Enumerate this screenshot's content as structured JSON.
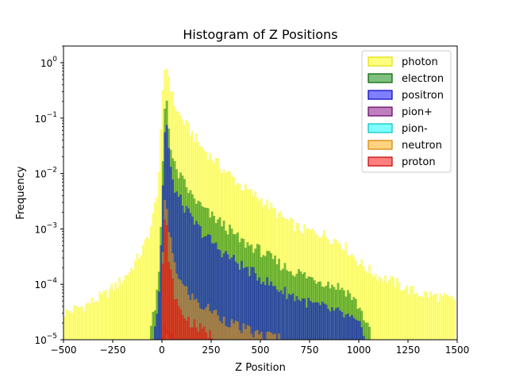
{
  "chart_data": {
    "type": "bar",
    "title": "Histogram of Z Positions",
    "xlabel": "Z Position",
    "ylabel": "Frequency",
    "xlim": [
      -500,
      1500
    ],
    "ylim": [
      1e-05,
      2
    ],
    "yscale": "log",
    "bin_width": 10,
    "grid": false,
    "legend_position": "top-right",
    "xticks": [
      {
        "value": -500,
        "label": "−500"
      },
      {
        "value": -250,
        "label": "−250"
      },
      {
        "value": 0,
        "label": "0"
      },
      {
        "value": 250,
        "label": "250"
      },
      {
        "value": 500,
        "label": "500"
      },
      {
        "value": 750,
        "label": "750"
      },
      {
        "value": 1000,
        "label": "1000"
      },
      {
        "value": 1250,
        "label": "1250"
      },
      {
        "value": 1500,
        "label": "1500"
      }
    ],
    "yticks": [
      {
        "value": 1e-05,
        "base": "10",
        "exp": "−5"
      },
      {
        "value": 0.0001,
        "base": "10",
        "exp": "−4"
      },
      {
        "value": 0.001,
        "base": "10",
        "exp": "−3"
      },
      {
        "value": 0.01,
        "base": "10",
        "exp": "−2"
      },
      {
        "value": 0.1,
        "base": "10",
        "exp": "−1"
      },
      {
        "value": 1,
        "base": "10",
        "exp": "0"
      }
    ],
    "series": [
      {
        "name": "photon",
        "color": "#ffff00",
        "edge": "#e0e000",
        "points": [
          [
            -500,
            3e-05
          ],
          [
            -400,
            4e-05
          ],
          [
            -300,
            6e-05
          ],
          [
            -200,
            0.00012
          ],
          [
            -150,
            0.0002
          ],
          [
            -100,
            0.0004
          ],
          [
            -60,
            0.0009
          ],
          [
            -40,
            0.002
          ],
          [
            -20,
            0.006
          ],
          [
            -10,
            0.02
          ],
          [
            0,
            0.12
          ],
          [
            10,
            0.55
          ],
          [
            20,
            1.0
          ],
          [
            30,
            0.7
          ],
          [
            40,
            0.45
          ],
          [
            50,
            0.3
          ],
          [
            60,
            0.2
          ],
          [
            80,
            0.13
          ],
          [
            100,
            0.1
          ],
          [
            150,
            0.055
          ],
          [
            200,
            0.03
          ],
          [
            250,
            0.02
          ],
          [
            300,
            0.013
          ],
          [
            350,
            0.009
          ],
          [
            400,
            0.006
          ],
          [
            450,
            0.0045
          ],
          [
            500,
            0.0035
          ],
          [
            550,
            0.0025
          ],
          [
            600,
            0.0017
          ],
          [
            650,
            0.0013
          ],
          [
            700,
            0.001
          ],
          [
            750,
            0.0009
          ],
          [
            800,
            0.00085
          ],
          [
            850,
            0.0007
          ],
          [
            900,
            0.0006
          ],
          [
            950,
            0.0004
          ],
          [
            1000,
            0.00025
          ],
          [
            1050,
            0.00018
          ],
          [
            1100,
            0.00014
          ],
          [
            1150,
            0.00012
          ],
          [
            1200,
            0.0001
          ],
          [
            1250,
            8e-05
          ],
          [
            1300,
            7e-05
          ],
          [
            1400,
            6e-05
          ],
          [
            1490,
            5e-05
          ]
        ]
      },
      {
        "name": "electron",
        "color": "#008000",
        "edge": "#006000",
        "points": [
          [
            -60,
            1.5e-05
          ],
          [
            -40,
            3e-05
          ],
          [
            -20,
            8e-05
          ],
          [
            -10,
            0.0003
          ],
          [
            0,
            0.003
          ],
          [
            10,
            0.08
          ],
          [
            20,
            0.3
          ],
          [
            30,
            0.15
          ],
          [
            40,
            0.04
          ],
          [
            50,
            0.02
          ],
          [
            60,
            0.015
          ],
          [
            80,
            0.01
          ],
          [
            100,
            0.008
          ],
          [
            150,
            0.004
          ],
          [
            200,
            0.0025
          ],
          [
            250,
            0.0017
          ],
          [
            300,
            0.0013
          ],
          [
            350,
            0.0009
          ],
          [
            400,
            0.0006
          ],
          [
            450,
            0.0005
          ],
          [
            500,
            0.0004
          ],
          [
            550,
            0.0003
          ],
          [
            600,
            0.00023
          ],
          [
            650,
            0.00018
          ],
          [
            700,
            0.00016
          ],
          [
            750,
            0.00013
          ],
          [
            800,
            0.00012
          ],
          [
            850,
            0.0001
          ],
          [
            900,
            9e-05
          ],
          [
            950,
            7e-05
          ],
          [
            1000,
            4e-05
          ],
          [
            1040,
            2e-05
          ],
          [
            1060,
            1.2e-05
          ]
        ]
      },
      {
        "name": "positron",
        "color": "#0000ff",
        "edge": "#0000c0",
        "points": [
          [
            -40,
            1.5e-05
          ],
          [
            -20,
            4e-05
          ],
          [
            -10,
            0.00015
          ],
          [
            0,
            0.0015
          ],
          [
            10,
            0.03
          ],
          [
            20,
            0.1
          ],
          [
            30,
            0.05
          ],
          [
            40,
            0.015
          ],
          [
            50,
            0.008
          ],
          [
            60,
            0.006
          ],
          [
            80,
            0.004
          ],
          [
            100,
            0.003
          ],
          [
            150,
            0.0015
          ],
          [
            200,
            0.0009
          ],
          [
            250,
            0.0006
          ],
          [
            300,
            0.0004
          ],
          [
            350,
            0.0003
          ],
          [
            400,
            0.00022
          ],
          [
            450,
            0.00017
          ],
          [
            500,
            0.00013
          ],
          [
            550,
            0.0001
          ],
          [
            600,
            8e-05
          ],
          [
            650,
            6.5e-05
          ],
          [
            700,
            5.5e-05
          ],
          [
            750,
            4.5e-05
          ],
          [
            800,
            4e-05
          ],
          [
            850,
            3.5e-05
          ],
          [
            900,
            3e-05
          ],
          [
            950,
            2.5e-05
          ],
          [
            1000,
            1.8e-05
          ],
          [
            1030,
            1.2e-05
          ]
        ]
      },
      {
        "name": "pion+",
        "color": "#800080",
        "edge": "#600060",
        "points": [
          [
            0,
            1.2e-05
          ],
          [
            20,
            2e-05
          ],
          [
            40,
            1.5e-05
          ],
          [
            60,
            1.2e-05
          ]
        ]
      },
      {
        "name": "pion-",
        "color": "#00ffff",
        "edge": "#00c0c0",
        "points": [
          [
            20,
            1.1e-05
          ],
          [
            40,
            1.1e-05
          ]
        ]
      },
      {
        "name": "neutron",
        "color": "#ffa500",
        "edge": "#d08000",
        "points": [
          [
            0,
            0.0001
          ],
          [
            10,
            0.002
          ],
          [
            20,
            0.004
          ],
          [
            30,
            0.001
          ],
          [
            40,
            0.0007
          ],
          [
            60,
            0.0003
          ],
          [
            80,
            0.00015
          ],
          [
            100,
            0.0001
          ],
          [
            150,
            6e-05
          ],
          [
            200,
            4e-05
          ],
          [
            250,
            3.5e-05
          ],
          [
            300,
            2.5e-05
          ],
          [
            350,
            2e-05
          ],
          [
            400,
            1.6e-05
          ],
          [
            450,
            1.4e-05
          ],
          [
            500,
            1.2e-05
          ],
          [
            600,
            1.1e-05
          ]
        ]
      },
      {
        "name": "proton",
        "color": "#ff0000",
        "edge": "#c00000",
        "points": [
          [
            0,
            5e-05
          ],
          [
            10,
            0.0008
          ],
          [
            20,
            0.002
          ],
          [
            30,
            0.0005
          ],
          [
            40,
            0.0002
          ],
          [
            60,
            8e-05
          ],
          [
            80,
            4e-05
          ],
          [
            100,
            3e-05
          ],
          [
            150,
            2e-05
          ],
          [
            200,
            1.5e-05
          ],
          [
            250,
            1.2e-05
          ],
          [
            280,
            1.1e-05
          ]
        ]
      }
    ]
  }
}
